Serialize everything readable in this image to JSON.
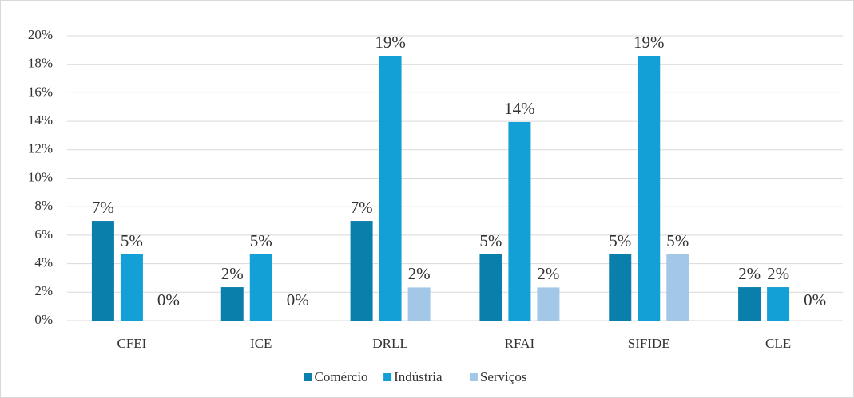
{
  "chart_data": {
    "type": "bar",
    "categories": [
      "CFEI",
      "ICE",
      "DRLL",
      "RFAI",
      "SIFIDE",
      "CLE"
    ],
    "series": [
      {
        "name": "Comércio",
        "color": "#0b7fab",
        "values": [
          7,
          2.35,
          7,
          4.65,
          4.65,
          2.35
        ],
        "value_labels": [
          "7%",
          "2%",
          "7%",
          "5%",
          "5%",
          "2%"
        ]
      },
      {
        "name": "Indústria",
        "color": "#13a0d6",
        "values": [
          4.65,
          4.65,
          18.6,
          13.95,
          18.6,
          2.35
        ],
        "value_labels": [
          "5%",
          "5%",
          "19%",
          "14%",
          "19%",
          "2%"
        ]
      },
      {
        "name": "Serviços",
        "color": "#a3c7e6",
        "values": [
          0,
          0,
          2.33,
          2.33,
          4.65,
          0
        ],
        "value_labels": [
          "0%",
          "0%",
          "2%",
          "2%",
          "5%",
          "0%"
        ]
      }
    ],
    "ylim": [
      0,
      20
    ],
    "yticks": [
      {
        "value": 0,
        "label": "0%"
      },
      {
        "value": 2,
        "label": "2%"
      },
      {
        "value": 4,
        "label": "4%"
      },
      {
        "value": 6,
        "label": "6%"
      },
      {
        "value": 8,
        "label": "8%"
      },
      {
        "value": 10,
        "label": "10%"
      },
      {
        "value": 12,
        "label": "12%"
      },
      {
        "value": 14,
        "label": "14%"
      },
      {
        "value": 16,
        "label": "16%"
      },
      {
        "value": 18,
        "label": "18%"
      },
      {
        "value": 20,
        "label": "20%"
      }
    ],
    "grid": true,
    "legend": "bottom"
  }
}
